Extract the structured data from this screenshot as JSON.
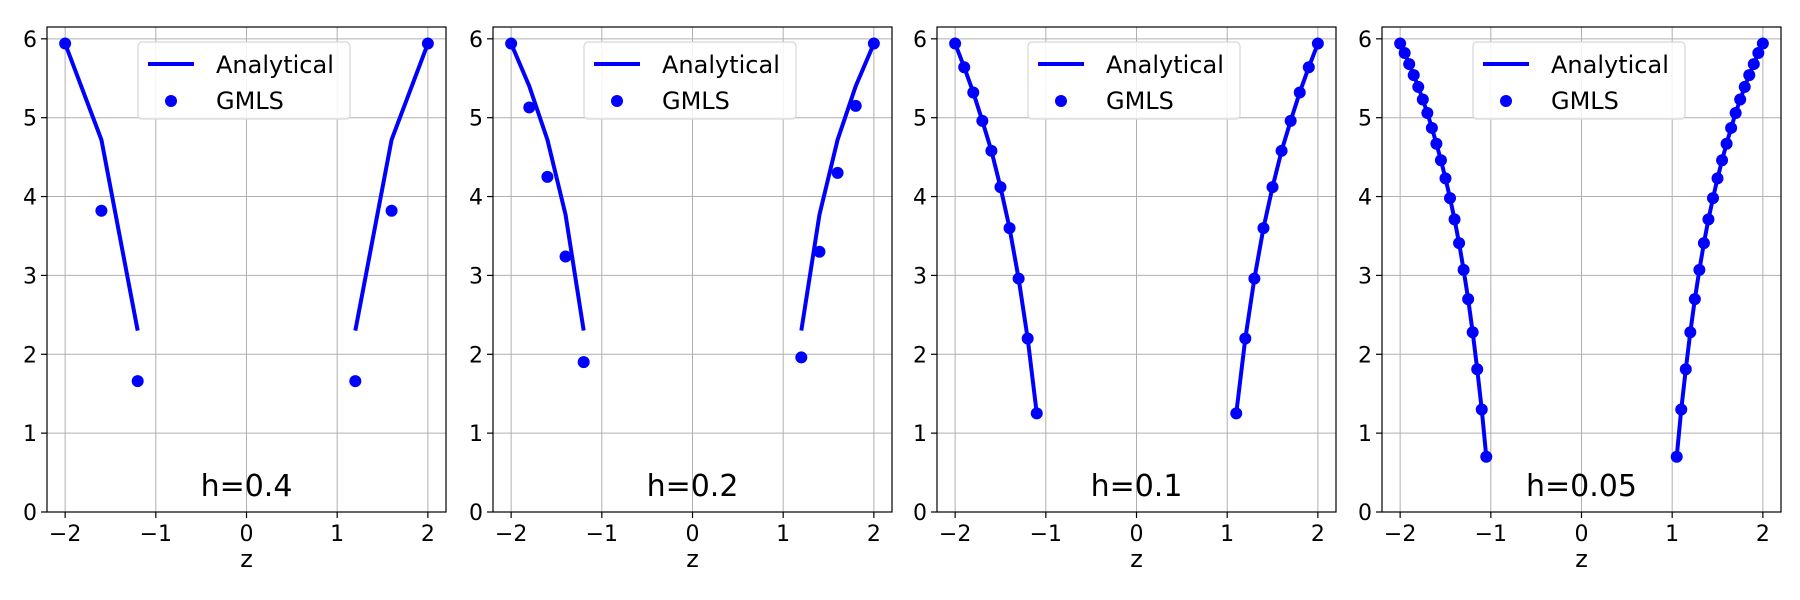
{
  "chart_data": [
    {
      "type": "line",
      "annotation": "h=0.4",
      "xlabel": "z",
      "ylabel": "",
      "xlim": [
        -2.2,
        2.2
      ],
      "ylim": [
        0,
        6.15
      ],
      "xticks": [
        "−2",
        "−1",
        "0",
        "1",
        "2"
      ],
      "yticks": [
        "0",
        "1",
        "2",
        "3",
        "4",
        "5",
        "6"
      ],
      "grid": true,
      "legend": {
        "position": "upper-center",
        "entries": [
          "Analytical",
          "GMLS"
        ]
      },
      "series": [
        {
          "name": "Analytical",
          "kind": "line",
          "color": "#0000ff",
          "segments": [
            {
              "x": [
                -2.0,
                -1.6,
                -1.2
              ],
              "y": [
                5.94,
                4.72,
                2.3
              ]
            },
            {
              "x": [
                1.2,
                1.6,
                2.0
              ],
              "y": [
                2.3,
                4.72,
                5.94
              ]
            }
          ]
        },
        {
          "name": "GMLS",
          "kind": "scatter",
          "color": "#0000ff",
          "x": [
            -2.0,
            -1.6,
            -1.2,
            1.2,
            1.6,
            2.0
          ],
          "y": [
            5.94,
            3.82,
            1.66,
            1.66,
            3.82,
            5.94
          ]
        }
      ]
    },
    {
      "type": "line",
      "annotation": "h=0.2",
      "xlabel": "z",
      "ylabel": "",
      "xlim": [
        -2.2,
        2.2
      ],
      "ylim": [
        0,
        6.15
      ],
      "xticks": [
        "−2",
        "−1",
        "0",
        "1",
        "2"
      ],
      "yticks": [
        "0",
        "1",
        "2",
        "3",
        "4",
        "5",
        "6"
      ],
      "grid": true,
      "legend": {
        "position": "upper-center",
        "entries": [
          "Analytical",
          "GMLS"
        ]
      },
      "series": [
        {
          "name": "Analytical",
          "kind": "line",
          "color": "#0000ff",
          "segments": [
            {
              "x": [
                -2.0,
                -1.8,
                -1.6,
                -1.4,
                -1.2
              ],
              "y": [
                5.94,
                5.4,
                4.72,
                3.77,
                2.3
              ]
            },
            {
              "x": [
                1.2,
                1.4,
                1.6,
                1.8,
                2.0
              ],
              "y": [
                2.3,
                3.77,
                4.72,
                5.4,
                5.94
              ]
            }
          ]
        },
        {
          "name": "GMLS",
          "kind": "scatter",
          "color": "#0000ff",
          "x": [
            -2.0,
            -1.8,
            -1.6,
            -1.4,
            -1.2,
            1.2,
            1.4,
            1.6,
            1.8,
            2.0
          ],
          "y": [
            5.94,
            5.13,
            4.25,
            3.24,
            1.9,
            1.96,
            3.3,
            4.3,
            5.15,
            5.94
          ]
        }
      ]
    },
    {
      "type": "line",
      "annotation": "h=0.1",
      "xlabel": "z",
      "ylabel": "",
      "xlim": [
        -2.2,
        2.2
      ],
      "ylim": [
        0,
        6.15
      ],
      "xticks": [
        "−2",
        "−1",
        "0",
        "1",
        "2"
      ],
      "yticks": [
        "0",
        "1",
        "2",
        "3",
        "4",
        "5",
        "6"
      ],
      "grid": true,
      "legend": {
        "position": "upper-center",
        "entries": [
          "Analytical",
          "GMLS"
        ]
      },
      "series": [
        {
          "name": "Analytical",
          "kind": "line",
          "color": "#0000ff",
          "segments": [
            {
              "x": [
                -2.0,
                -1.9,
                -1.8,
                -1.7,
                -1.6,
                -1.5,
                -1.4,
                -1.3,
                -1.2,
                -1.1
              ],
              "y": [
                5.94,
                5.64,
                5.32,
                4.96,
                4.58,
                4.12,
                3.6,
                2.96,
                2.2,
                1.25
              ]
            },
            {
              "x": [
                1.1,
                1.2,
                1.3,
                1.4,
                1.5,
                1.6,
                1.7,
                1.8,
                1.9,
                2.0
              ],
              "y": [
                1.25,
                2.2,
                2.96,
                3.6,
                4.12,
                4.58,
                4.96,
                5.32,
                5.64,
                5.94
              ]
            }
          ]
        },
        {
          "name": "GMLS",
          "kind": "scatter",
          "color": "#0000ff",
          "x": [
            -2.0,
            -1.9,
            -1.8,
            -1.7,
            -1.6,
            -1.5,
            -1.4,
            -1.3,
            -1.2,
            -1.1,
            1.1,
            1.2,
            1.3,
            1.4,
            1.5,
            1.6,
            1.7,
            1.8,
            1.9,
            2.0
          ],
          "y": [
            5.94,
            5.64,
            5.32,
            4.96,
            4.58,
            4.12,
            3.6,
            2.96,
            2.2,
            1.25,
            1.25,
            2.2,
            2.96,
            3.6,
            4.12,
            4.58,
            4.96,
            5.32,
            5.64,
            5.94
          ]
        }
      ]
    },
    {
      "type": "line",
      "annotation": "h=0.05",
      "xlabel": "z",
      "ylabel": "",
      "xlim": [
        -2.2,
        2.2
      ],
      "ylim": [
        0,
        6.15
      ],
      "xticks": [
        "−2",
        "−1",
        "0",
        "1",
        "2"
      ],
      "yticks": [
        "0",
        "1",
        "2",
        "3",
        "4",
        "5",
        "6"
      ],
      "grid": true,
      "legend": {
        "position": "upper-center",
        "entries": [
          "Analytical",
          "GMLS"
        ]
      },
      "series": [
        {
          "name": "Analytical",
          "kind": "line",
          "color": "#0000ff",
          "segments": [
            {
              "x": [
                -2.0,
                -1.95,
                -1.9,
                -1.85,
                -1.8,
                -1.75,
                -1.7,
                -1.65,
                -1.6,
                -1.55,
                -1.5,
                -1.45,
                -1.4,
                -1.35,
                -1.3,
                -1.25,
                -1.2,
                -1.15,
                -1.1,
                -1.05
              ],
              "y": [
                5.94,
                5.82,
                5.68,
                5.54,
                5.39,
                5.23,
                5.06,
                4.87,
                4.67,
                4.46,
                4.23,
                3.98,
                3.71,
                3.41,
                3.07,
                2.7,
                2.28,
                1.81,
                1.3,
                0.7
              ]
            },
            {
              "x": [
                1.05,
                1.1,
                1.15,
                1.2,
                1.25,
                1.3,
                1.35,
                1.4,
                1.45,
                1.5,
                1.55,
                1.6,
                1.65,
                1.7,
                1.75,
                1.8,
                1.85,
                1.9,
                1.95,
                2.0
              ],
              "y": [
                0.7,
                1.3,
                1.81,
                2.28,
                2.7,
                3.07,
                3.41,
                3.71,
                3.98,
                4.23,
                4.46,
                4.67,
                4.87,
                5.06,
                5.23,
                5.39,
                5.54,
                5.68,
                5.82,
                5.94
              ]
            }
          ]
        },
        {
          "name": "GMLS",
          "kind": "scatter",
          "color": "#0000ff",
          "x": [
            -2.0,
            -1.95,
            -1.9,
            -1.85,
            -1.8,
            -1.75,
            -1.7,
            -1.65,
            -1.6,
            -1.55,
            -1.5,
            -1.45,
            -1.4,
            -1.35,
            -1.3,
            -1.25,
            -1.2,
            -1.15,
            -1.1,
            -1.05,
            1.05,
            1.1,
            1.15,
            1.2,
            1.25,
            1.3,
            1.35,
            1.4,
            1.45,
            1.5,
            1.55,
            1.6,
            1.65,
            1.7,
            1.75,
            1.8,
            1.85,
            1.9,
            1.95,
            2.0
          ],
          "y": [
            5.94,
            5.82,
            5.68,
            5.54,
            5.39,
            5.23,
            5.06,
            4.87,
            4.67,
            4.46,
            4.23,
            3.98,
            3.71,
            3.41,
            3.07,
            2.7,
            2.28,
            1.81,
            1.3,
            0.7,
            0.7,
            1.3,
            1.81,
            2.28,
            2.7,
            3.07,
            3.41,
            3.71,
            3.98,
            4.23,
            4.46,
            4.67,
            4.87,
            5.06,
            5.23,
            5.39,
            5.54,
            5.68,
            5.82,
            5.94
          ]
        }
      ]
    }
  ]
}
